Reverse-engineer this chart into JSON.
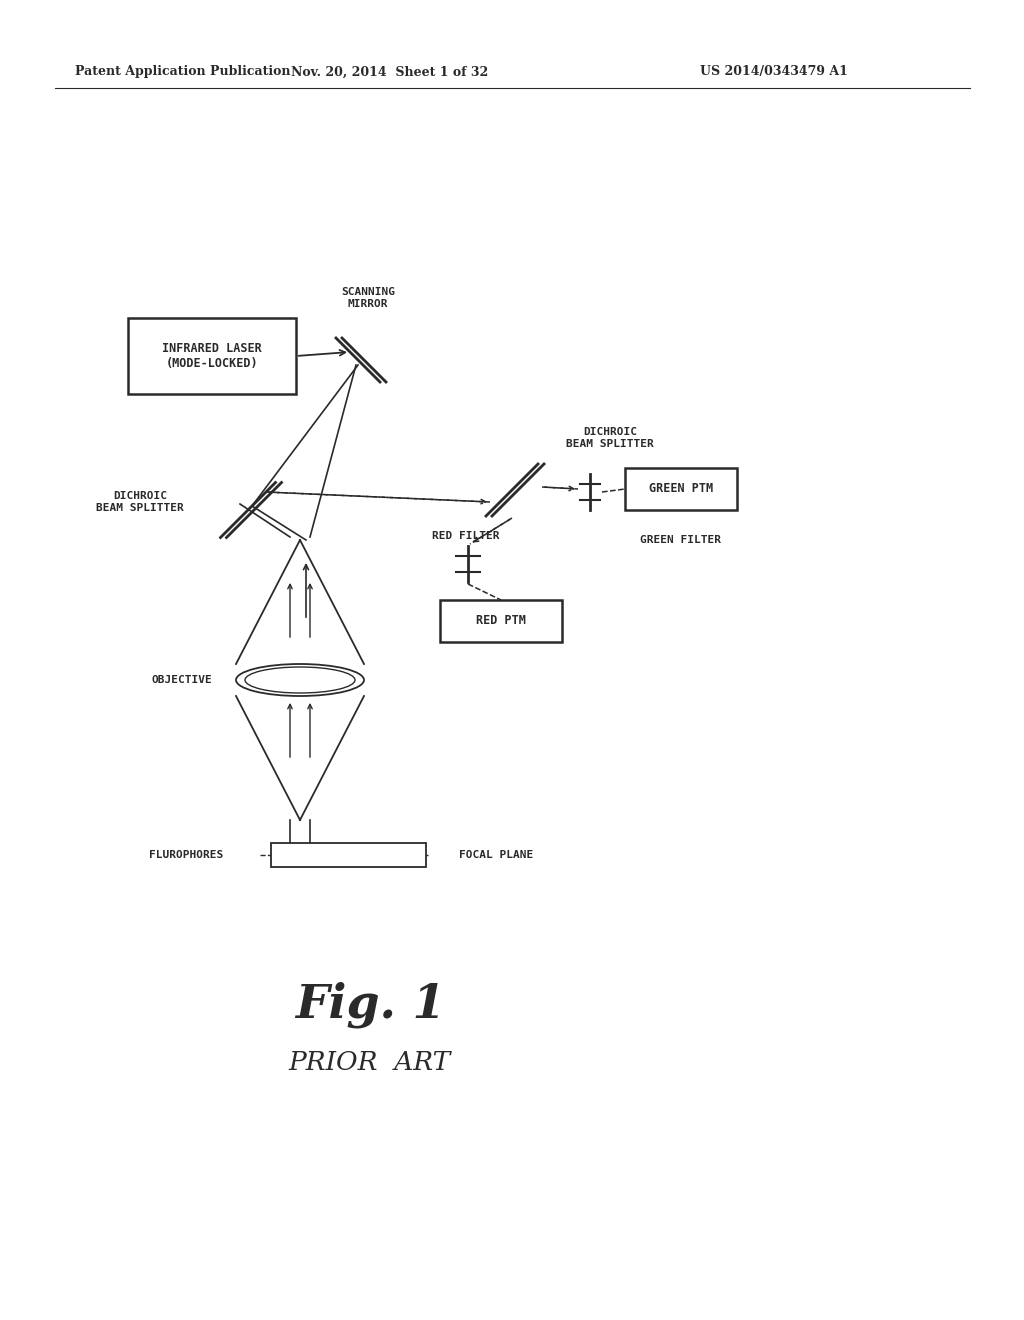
{
  "bg_color": "#ffffff",
  "line_color": "#2a2a2a",
  "header_left": "Patent Application Publication",
  "header_mid": "Nov. 20, 2014  Sheet 1 of 32",
  "header_right": "US 2014/0343479 A1",
  "fig1_label": "Fig. 1",
  "prior_art_label": "PRIOR  ART",
  "labels": {
    "infrared_laser": "INFRARED LASER\n(MODE-LOCKED)",
    "scanning_mirror": "SCANNING\nMIRROR",
    "dichroic_bs_left": "DICHROIC\nBEAM SPLITTER",
    "dichroic_bs_right": "DICHROIC\nBEAM SPLITTER",
    "red_filter": "RED FILTER",
    "green_filter": "GREEN FILTER",
    "red_ptm": "RED PTM",
    "green_ptm": "GREEN PTM",
    "objective": "OBJECTIVE",
    "flurophores": "FLUROPHORES",
    "focal_plane": "FOCAL PLANE"
  }
}
